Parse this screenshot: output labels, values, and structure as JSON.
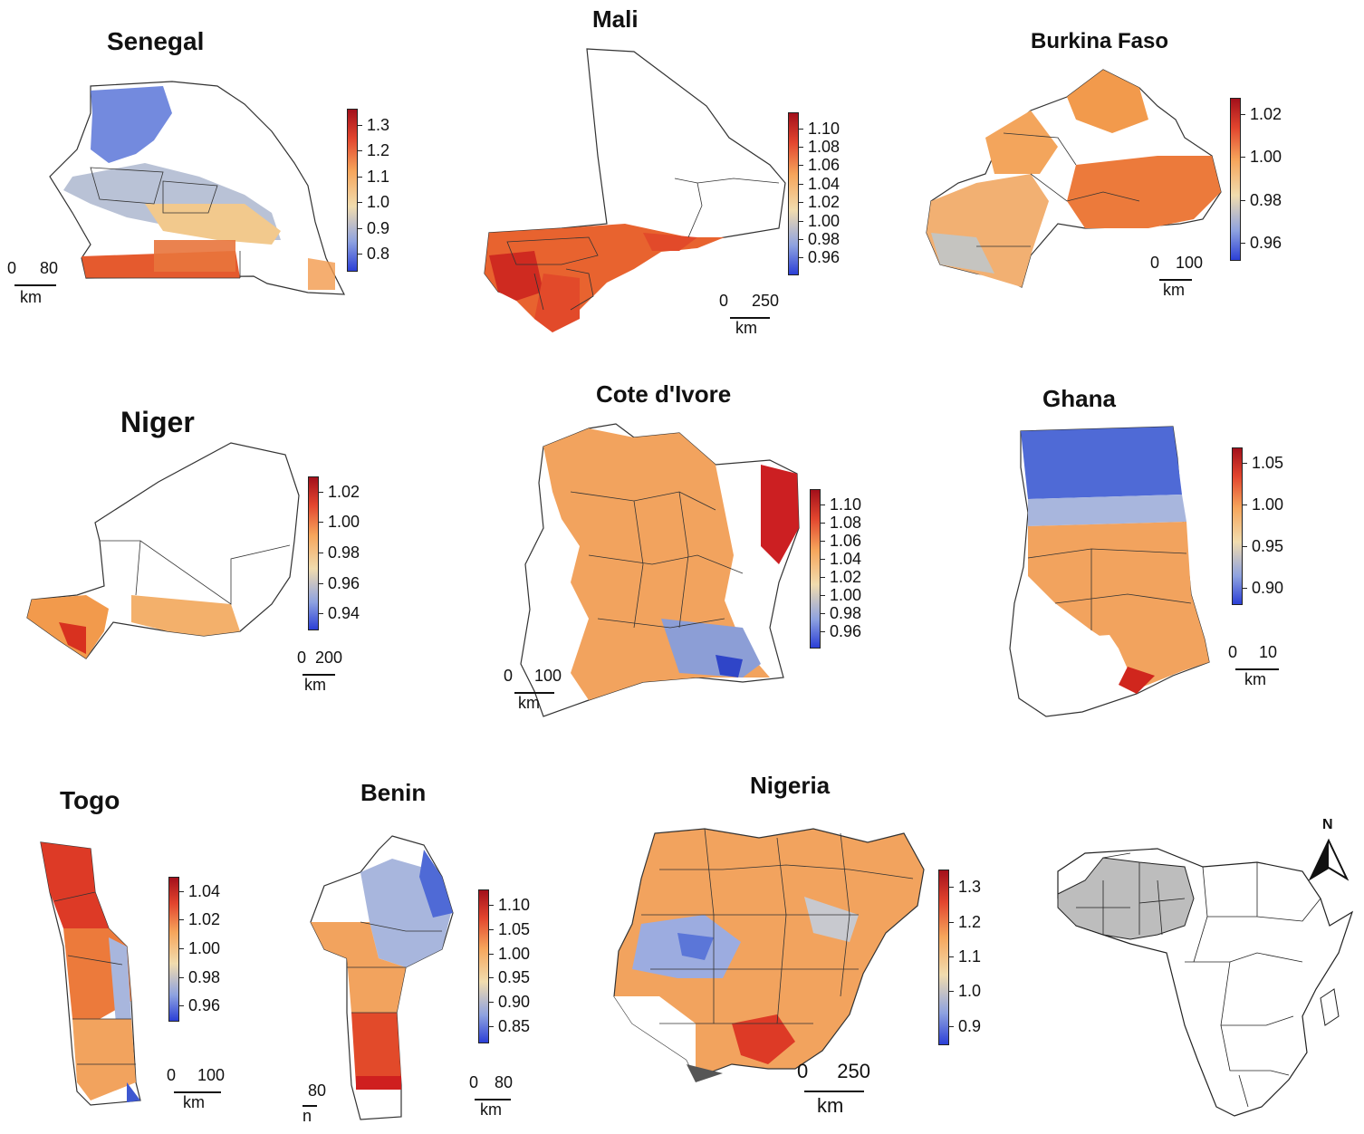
{
  "panels": [
    {
      "key": "senegal",
      "title": "Senegal",
      "ticks": [
        "1.3",
        "1.2",
        "1.1",
        "1.0",
        "0.9",
        "0.8"
      ],
      "scale_nums": [
        "0",
        "80"
      ],
      "scale_unit": "km"
    },
    {
      "key": "mali",
      "title": "Mali",
      "ticks": [
        "1.10",
        "1.08",
        "1.06",
        "1.04",
        "1.02",
        "1.00",
        "0.98",
        "0.96"
      ],
      "scale_nums": [
        "0",
        "250"
      ],
      "scale_unit": "km"
    },
    {
      "key": "burkina",
      "title": "Burkina Faso",
      "ticks": [
        "1.02",
        "1.00",
        "0.98",
        "0.96"
      ],
      "scale_nums": [
        "0",
        "100"
      ],
      "scale_unit": "km"
    },
    {
      "key": "niger",
      "title": "Niger",
      "ticks": [
        "1.02",
        "1.00",
        "0.98",
        "0.96",
        "0.94"
      ],
      "scale_nums": [
        "0",
        "200"
      ],
      "scale_unit": "km"
    },
    {
      "key": "cote",
      "title": "Cote d'Ivore",
      "ticks": [
        "1.10",
        "1.08",
        "1.06",
        "1.04",
        "1.02",
        "1.00",
        "0.98",
        "0.96"
      ],
      "scale_nums": [
        "0",
        "100"
      ],
      "scale_unit": "km"
    },
    {
      "key": "ghana",
      "title": "Ghana",
      "ticks": [
        "1.05",
        "1.00",
        "0.95",
        "0.90"
      ],
      "scale_nums": [
        "0",
        "10"
      ],
      "scale_unit": "km"
    },
    {
      "key": "togo",
      "title": "Togo",
      "ticks": [
        "1.04",
        "1.02",
        "1.00",
        "0.98",
        "0.96"
      ],
      "scale_nums": [
        "0",
        "100"
      ],
      "scale_unit": "km"
    },
    {
      "key": "benin",
      "title": "Benin",
      "ticks": [
        "1.10",
        "1.05",
        "1.00",
        "0.95",
        "0.90",
        "0.85"
      ],
      "scale_nums": [
        "0",
        "80"
      ],
      "scale_unit": "km"
    },
    {
      "key": "nigeria",
      "title": "Nigeria",
      "ticks": [
        "1.3",
        "1.2",
        "1.1",
        "1.0",
        "0.9"
      ],
      "scale_nums": [
        "0",
        "250"
      ],
      "scale_unit": "km"
    }
  ],
  "benin_partial_scale": {
    "num": "80",
    "unit": "n"
  },
  "north_label": "N",
  "colors": {
    "low": "#2b3fd6",
    "mid": "#f1dcae",
    "high": "#a3101b",
    "orange": "#f29a4c",
    "highlight": "#bdbdbd",
    "outline": "#333333"
  }
}
